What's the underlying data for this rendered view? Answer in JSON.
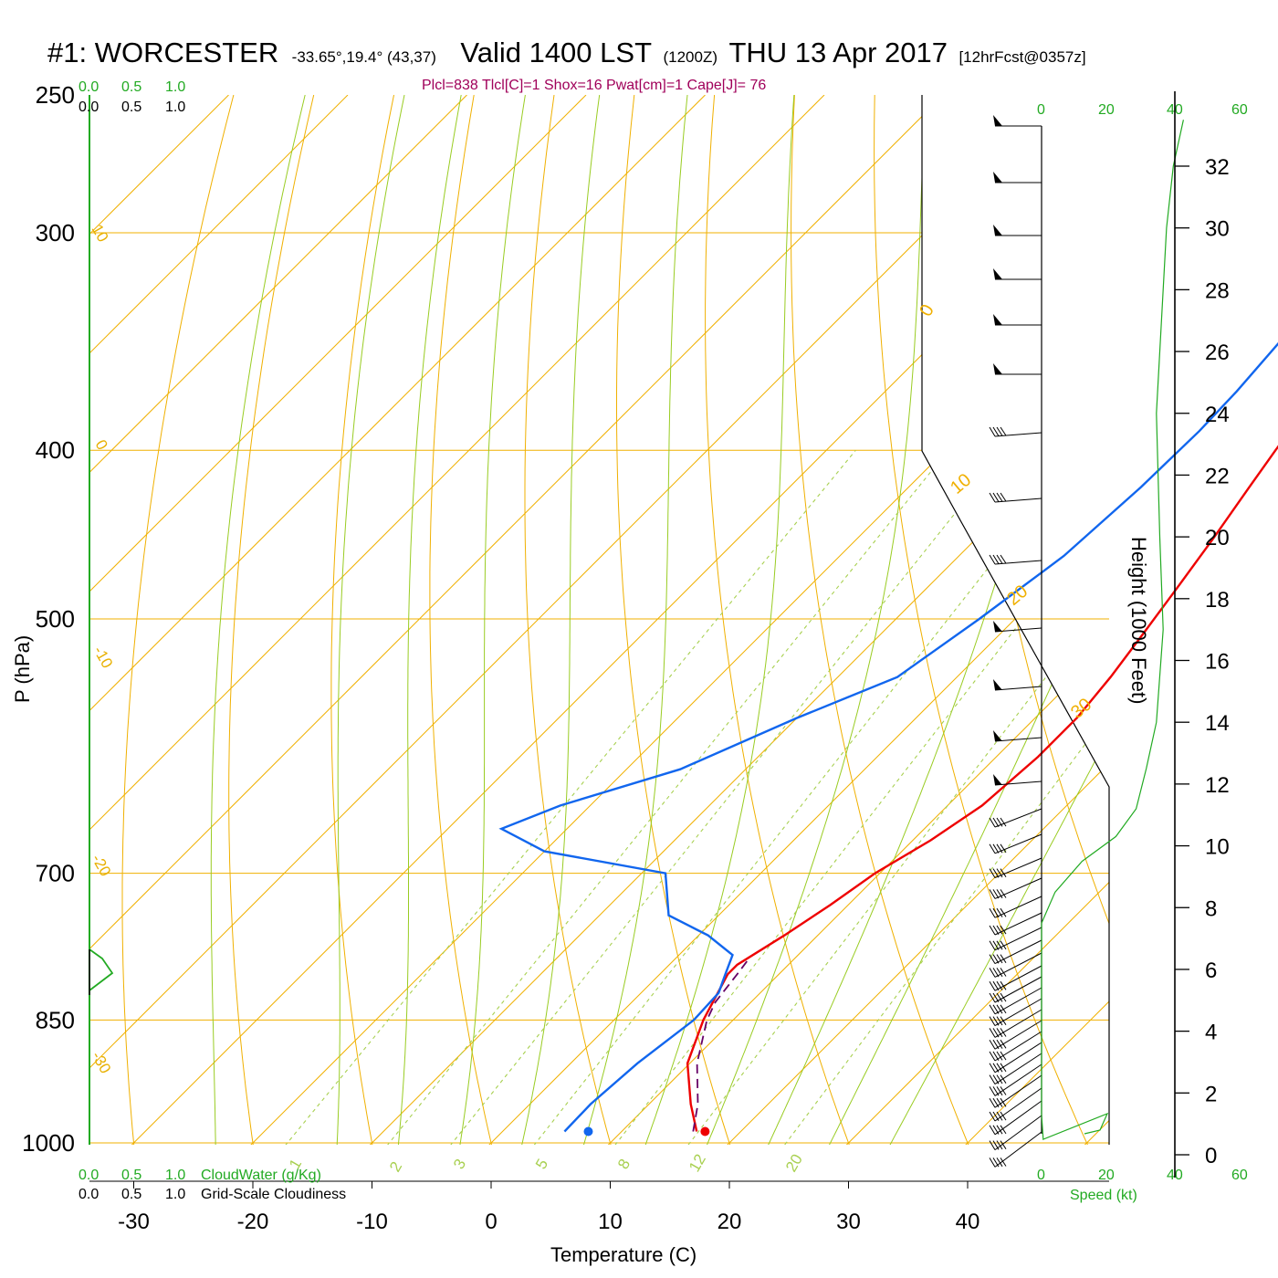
{
  "title": {
    "station": "#1: WORCESTER",
    "coords": "-33.65°,19.4° (43,37)",
    "valid": "Valid 1400 LST",
    "utc": "(1200Z)",
    "date": "THU 13 Apr 2017",
    "forecast": "[12hrFcst@0357z]"
  },
  "params": "Plcl=838 Tlcl[C]=1 Shox=16 Pwat[cm]=1 Cape[J]= 76",
  "colors": {
    "temperature": "#ee0000",
    "dewpoint": "#1166ee",
    "parcel": "#660066",
    "isotherm": "#f0b000",
    "dry_adiabat": "#f0b000",
    "moist_adiabat": "#99cc22",
    "mixing_ratio": "#a8d050",
    "cloud_green": "#22aa22"
  },
  "chart_data": {
    "type": "skew-t",
    "title": "#1: WORCESTER -33.65°,19.4° (43,37) Valid 1400 LST (1200Z) THU 13 Apr 2017 [12hrFcst@0357z]",
    "xlabel": "Temperature (C)",
    "ylabel": "P (hPa)",
    "xlim": [
      -35,
      45
    ],
    "ylim_pressure": [
      1050,
      250
    ],
    "x_ticks": [
      "-30",
      "-20",
      "-10",
      "0",
      "10",
      "20",
      "30",
      "40"
    ],
    "pressure_ticks": [
      "250",
      "300",
      "400",
      "500",
      "700",
      "850",
      "1000"
    ],
    "series": [
      {
        "name": "temperature",
        "points_p_t": [
          [
            985,
            16.3
          ],
          [
            950,
            13.5
          ],
          [
            900,
            9.8
          ],
          [
            850,
            7.5
          ],
          [
            800,
            5.7
          ],
          [
            790,
            5.7
          ],
          [
            760,
            7.2
          ],
          [
            730,
            8.5
          ],
          [
            700,
            9.6
          ],
          [
            670,
            11.5
          ],
          [
            640,
            12.9
          ],
          [
            600,
            13.5
          ],
          [
            570,
            13.5
          ],
          [
            540,
            12.9
          ],
          [
            510,
            12.0
          ],
          [
            480,
            11.0
          ],
          [
            450,
            9.9
          ],
          [
            420,
            8.6
          ],
          [
            400,
            7.7
          ],
          [
            370,
            6.4
          ],
          [
            340,
            5.0
          ],
          [
            310,
            3.3
          ],
          [
            280,
            1.2
          ],
          [
            260,
            -0.2
          ]
        ]
      },
      {
        "name": "dewpoint",
        "points_p_t": [
          [
            985,
            5.2
          ],
          [
            950,
            5.1
          ],
          [
            900,
            5.6
          ],
          [
            850,
            6.7
          ],
          [
            820,
            6.5
          ],
          [
            800,
            5.5
          ],
          [
            780,
            4.5
          ],
          [
            760,
            0.8
          ],
          [
            740,
            -4.2
          ],
          [
            700,
            -8.0
          ],
          [
            680,
            -20.0
          ],
          [
            660,
            -25.5
          ],
          [
            640,
            -22.5
          ],
          [
            610,
            -15.5
          ],
          [
            570,
            -10.0
          ],
          [
            540,
            -5.0
          ],
          [
            500,
            -3.0
          ],
          [
            460,
            -1.2
          ],
          [
            420,
            -0.5
          ],
          [
            390,
            -0.3
          ],
          [
            370,
            -0.5
          ],
          [
            340,
            -1.2
          ],
          [
            310,
            -3.3
          ],
          [
            280,
            -5.4
          ],
          [
            260,
            -6.5
          ]
        ]
      },
      {
        "name": "parcel",
        "points_p_t": [
          [
            985,
            16.0
          ],
          [
            950,
            14.1
          ],
          [
            900,
            10.6
          ],
          [
            850,
            7.8
          ],
          [
            830,
            7.0
          ],
          [
            800,
            6.5
          ],
          [
            785,
            6.2
          ]
        ]
      }
    ],
    "surface_points": {
      "temperature_c": 17.0,
      "dewpoint_c": 7.2,
      "pressure_hpa": 985
    },
    "isotherm_labels": [
      "10",
      "0",
      "-10",
      "-20",
      "-30",
      "0",
      "10",
      "20",
      "30"
    ],
    "mixing_ratio_labels": [
      "1",
      "2",
      "3",
      "5",
      "8",
      "12",
      "20"
    ],
    "wind_axis": {
      "label": "Speed (kt)",
      "ticks": [
        "0",
        "20",
        "40",
        "60"
      ]
    },
    "height_axis": {
      "label": "Height (1000 Feet)",
      "ticks": [
        "32",
        "30",
        "28",
        "26",
        "24",
        "22",
        "20",
        "18",
        "16",
        "14",
        "12",
        "10",
        "8",
        "6",
        "4",
        "2",
        "0"
      ]
    },
    "wind_profile_kt": [
      {
        "h_kft": 0.5,
        "speed": 0.5
      },
      {
        "h_kft": 1.3,
        "speed": 0.0
      },
      {
        "h_kft": 1.8,
        "speed": 0.0
      },
      {
        "h_kft": 6,
        "speed": 0
      },
      {
        "h_kft": 7.5,
        "speed": 0
      },
      {
        "h_kft": 8.5,
        "speed": 4
      },
      {
        "h_kft": 9.5,
        "speed": 12
      },
      {
        "h_kft": 10.3,
        "speed": 22
      },
      {
        "h_kft": 11.2,
        "speed": 28
      },
      {
        "h_kft": 12.5,
        "speed": 31
      },
      {
        "h_kft": 14,
        "speed": 34
      },
      {
        "h_kft": 17,
        "speed": 36
      },
      {
        "h_kft": 20,
        "speed": 35
      },
      {
        "h_kft": 24,
        "speed": 34
      },
      {
        "h_kft": 28,
        "speed": 36
      },
      {
        "h_kft": 30,
        "speed": 37
      },
      {
        "h_kft": 32,
        "speed": 39
      },
      {
        "h_kft": 33.5,
        "speed": 42
      }
    ],
    "wind_barb_count": 37,
    "cloud_panel": {
      "cloudwater_label": "CloudWater (g/Kg)",
      "cloudiness_label": "Grid-Scale Cloudiness",
      "scale_ticks": [
        "0.0",
        "0.5",
        "1.0"
      ]
    }
  }
}
